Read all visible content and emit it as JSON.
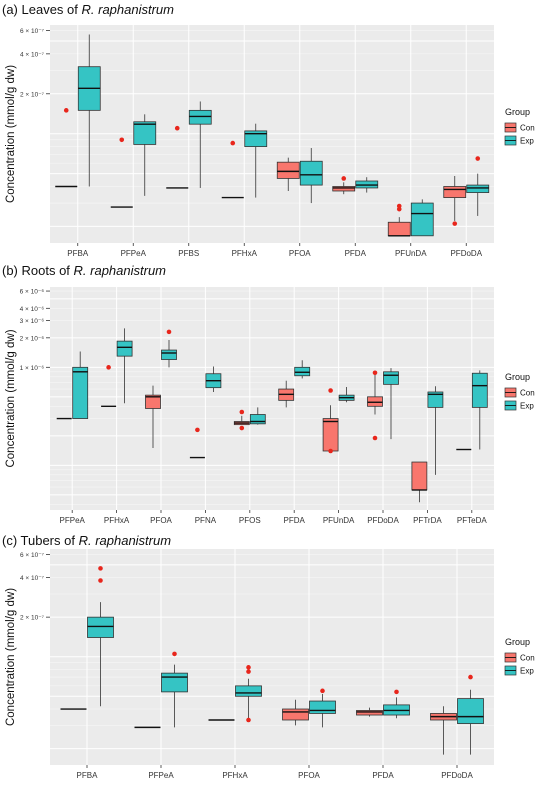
{
  "figure": {
    "ylabel": "Concentration (mmol/g dw)",
    "legend_title": "Group",
    "legend_labels": [
      "Con",
      "Exp"
    ],
    "colors": {
      "Con": "#F8766D",
      "Exp": "#35C4C4",
      "panel_bg": "#EBEBEB",
      "grid": "#FFFFFF",
      "outlier": "#E8261C"
    }
  },
  "chart_data": [
    {
      "type": "box",
      "title": "(a) Leaves of ",
      "title_species": "R. raphanistrum",
      "ylabel": "Concentration (mmol/g dw)",
      "y_ticks": [
        "6 × 10⁻⁷",
        "4 × 10⁻⁷",
        "2 × 10⁻⁷"
      ],
      "scale": "log",
      "categories": [
        "PFBA",
        "PFPeA",
        "PFBS",
        "PFHxA",
        "PFOA",
        "PFDA",
        "PFUnDA",
        "PFDoDA"
      ],
      "legend_position": "right",
      "series": [
        {
          "name": "Con",
          "boxes": [
            {
              "cat": 0,
              "min": 4e-08,
              "q1": 4e-08,
              "median": 4e-08,
              "q3": 4e-08,
              "max": 4e-08,
              "outliers": [
                1.5e-07
              ]
            },
            {
              "cat": 1,
              "min": 2.8e-08,
              "q1": 2.8e-08,
              "median": 2.8e-08,
              "q3": 2.8e-08,
              "max": 2.8e-08,
              "outliers": [
                9e-08
              ]
            },
            {
              "cat": 2,
              "min": 3.9e-08,
              "q1": 3.9e-08,
              "median": 3.9e-08,
              "q3": 3.9e-08,
              "max": 3.9e-08,
              "outliers": [
                1.1e-07
              ]
            },
            {
              "cat": 3,
              "min": 3.3e-08,
              "q1": 3.3e-08,
              "median": 3.3e-08,
              "q3": 3.3e-08,
              "max": 3.3e-08,
              "outliers": [
                8.5e-08
              ]
            },
            {
              "cat": 4,
              "min": 3.7e-08,
              "q1": 4.6e-08,
              "median": 5.2e-08,
              "q3": 6.1e-08,
              "max": 6.6e-08,
              "outliers": []
            },
            {
              "cat": 5,
              "min": 3.5e-08,
              "q1": 3.7e-08,
              "median": 3.9e-08,
              "q3": 4e-08,
              "max": 4.3e-08,
              "outliers": [
                4.6e-08
              ]
            },
            {
              "cat": 6,
              "min": 1.7e-08,
              "q1": 1.7e-08,
              "median": 1.7e-08,
              "q3": 2.15e-08,
              "max": 2.35e-08,
              "outliers": [
                2.7e-08,
                2.85e-08
              ]
            },
            {
              "cat": 7,
              "min": 2.2e-08,
              "q1": 3.3e-08,
              "median": 3.8e-08,
              "q3": 4e-08,
              "max": 4.8e-08,
              "outliers": [
                2.1e-08
              ]
            }
          ]
        },
        {
          "name": "Exp",
          "boxes": [
            {
              "cat": 0,
              "min": 4e-08,
              "q1": 1.5e-07,
              "median": 2.2e-07,
              "q3": 3.2e-07,
              "max": 5.6e-07,
              "outliers": []
            },
            {
              "cat": 1,
              "min": 3.4e-08,
              "q1": 8.3e-08,
              "median": 1.18e-07,
              "q3": 1.23e-07,
              "max": 1.4e-07,
              "outliers": []
            },
            {
              "cat": 2,
              "min": 3.9e-08,
              "q1": 1.18e-07,
              "median": 1.35e-07,
              "q3": 1.5e-07,
              "max": 1.75e-07,
              "outliers": []
            },
            {
              "cat": 3,
              "min": 3.3e-08,
              "q1": 8e-08,
              "median": 1e-07,
              "q3": 1.05e-07,
              "max": 1.19e-07,
              "outliers": []
            },
            {
              "cat": 4,
              "min": 3e-08,
              "q1": 4.1e-08,
              "median": 4.9e-08,
              "q3": 6.2e-08,
              "max": 7.8e-08,
              "outliers": []
            },
            {
              "cat": 5,
              "min": 3.6e-08,
              "q1": 3.9e-08,
              "median": 4.1e-08,
              "q3": 4.4e-08,
              "max": 4.7e-08,
              "outliers": []
            },
            {
              "cat": 6,
              "min": 1.7e-08,
              "q1": 1.7e-08,
              "median": 2.5e-08,
              "q3": 3e-08,
              "max": 3.2e-08,
              "outliers": []
            },
            {
              "cat": 7,
              "min": 2.4e-08,
              "q1": 3.6e-08,
              "median": 3.9e-08,
              "q3": 4.1e-08,
              "max": 5e-08,
              "outliers": [
                6.5e-08
              ]
            }
          ]
        }
      ]
    },
    {
      "type": "box",
      "title": "(b) Roots of ",
      "title_species": "R. raphanistrum",
      "ylabel": "Concentration (mmol/g dw)",
      "y_ticks": [
        "6 × 10⁻⁶",
        "4 × 10⁻⁶",
        "3 × 10⁻⁶",
        "2 × 10⁻⁶",
        "1 × 10⁻⁶"
      ],
      "scale": "log",
      "categories": [
        "PFPeA",
        "PFHxA",
        "PFOA",
        "PFNA",
        "PFOS",
        "PFDA",
        "PFUnDA",
        "PFDoDA",
        "PFTrDA",
        "PFTeDA"
      ],
      "legend_position": "right",
      "series": [
        {
          "name": "Con",
          "boxes": [
            {
              "cat": 0,
              "min": 3e-07,
              "q1": 3e-07,
              "median": 3e-07,
              "q3": 3e-07,
              "max": 3e-07,
              "outliers": []
            },
            {
              "cat": 1,
              "min": 4e-07,
              "q1": 4e-07,
              "median": 4e-07,
              "q3": 4e-07,
              "max": 4e-07,
              "outliers": [
                1e-06
              ]
            },
            {
              "cat": 2,
              "min": 1.5e-07,
              "q1": 3.8e-07,
              "median": 5e-07,
              "q3": 5.2e-07,
              "max": 6.5e-07,
              "outliers": []
            },
            {
              "cat": 3,
              "min": 1.2e-07,
              "q1": 1.2e-07,
              "median": 1.2e-07,
              "q3": 1.2e-07,
              "max": 1.2e-07,
              "outliers": [
                2.3e-07
              ]
            },
            {
              "cat": 4,
              "min": 2.6e-07,
              "q1": 2.6e-07,
              "median": 2.7e-07,
              "q3": 2.8e-07,
              "max": 3.2e-07,
              "outliers": [
                2.4e-07,
                3.5e-07
              ]
            },
            {
              "cat": 5,
              "min": 3.9e-07,
              "q1": 4.6e-07,
              "median": 5.3e-07,
              "q3": 6e-07,
              "max": 7.3e-07,
              "outliers": []
            },
            {
              "cat": 6,
              "min": 1.4e-07,
              "q1": 1.4e-07,
              "median": 2.8e-07,
              "q3": 3e-07,
              "max": 4.1e-07,
              "outliers": [
                1.4e-07,
                5.8e-07
              ]
            },
            {
              "cat": 7,
              "min": 3.3e-07,
              "q1": 4e-07,
              "median": 4.4e-07,
              "q3": 5e-07,
              "max": 8.5e-07,
              "outliers": [
                1.9e-07,
                8.8e-07
              ]
            },
            {
              "cat": 8,
              "min": 4.2e-08,
              "q1": 5.6e-08,
              "median": 5.6e-08,
              "q3": 1.08e-07,
              "max": 1.08e-07,
              "outliers": []
            },
            {
              "cat": 9,
              "min": 1.45e-07,
              "q1": 1.45e-07,
              "median": 1.45e-07,
              "q3": 1.45e-07,
              "max": 1.45e-07,
              "outliers": []
            }
          ]
        },
        {
          "name": "Exp",
          "boxes": [
            {
              "cat": 0,
              "min": 3e-07,
              "q1": 3e-07,
              "median": 9e-07,
              "q3": 1e-06,
              "max": 1.45e-06,
              "outliers": []
            },
            {
              "cat": 1,
              "min": 4.3e-07,
              "q1": 1.3e-06,
              "median": 1.6e-06,
              "q3": 1.85e-06,
              "max": 2.5e-06,
              "outliers": []
            },
            {
              "cat": 2,
              "min": 1e-06,
              "q1": 1.2e-06,
              "median": 1.4e-06,
              "q3": 1.5e-06,
              "max": 1.9e-06,
              "outliers": [
                2.3e-06
              ]
            },
            {
              "cat": 3,
              "min": 5.6e-07,
              "q1": 6.2e-07,
              "median": 7.3e-07,
              "q3": 8.6e-07,
              "max": 1.02e-06,
              "outliers": []
            },
            {
              "cat": 4,
              "min": 2.6e-07,
              "q1": 2.65e-07,
              "median": 2.8e-07,
              "q3": 3.3e-07,
              "max": 3.9e-07,
              "outliers": []
            },
            {
              "cat": 5,
              "min": 7.7e-07,
              "q1": 8.2e-07,
              "median": 8.9e-07,
              "q3": 1e-06,
              "max": 1.18e-06,
              "outliers": []
            },
            {
              "cat": 6,
              "min": 4.4e-07,
              "q1": 4.6e-07,
              "median": 4.9e-07,
              "q3": 5.2e-07,
              "max": 6.3e-07,
              "outliers": []
            },
            {
              "cat": 7,
              "min": 1.85e-07,
              "q1": 6.7e-07,
              "median": 8.3e-07,
              "q3": 9e-07,
              "max": 9.8e-07,
              "outliers": []
            },
            {
              "cat": 8,
              "min": 8e-08,
              "q1": 3.9e-07,
              "median": 5.3e-07,
              "q3": 5.6e-07,
              "max": 6.4e-07,
              "outliers": []
            },
            {
              "cat": 9,
              "min": 1.45e-07,
              "q1": 3.9e-07,
              "median": 6.5e-07,
              "q3": 8.7e-07,
              "max": 9.3e-07,
              "outliers": []
            }
          ]
        }
      ]
    },
    {
      "type": "box",
      "title": "(c) Tubers of ",
      "title_species": "R. raphanistrum",
      "ylabel": "Concentration (mmol/g dw)",
      "y_ticks": [
        "6 × 10⁻⁷",
        "4 × 10⁻⁷",
        "2 × 10⁻⁷"
      ],
      "scale": "log",
      "categories": [
        "PFBA",
        "PFPeA",
        "PFHxA",
        "PFOA",
        "PFDA",
        "PFDoDA"
      ],
      "legend_position": "right",
      "series": [
        {
          "name": "Con",
          "boxes": [
            {
              "cat": 0,
              "min": 4e-08,
              "q1": 4e-08,
              "median": 4e-08,
              "q3": 4e-08,
              "max": 4e-08,
              "outliers": []
            },
            {
              "cat": 1,
              "min": 2.9e-08,
              "q1": 2.9e-08,
              "median": 2.9e-08,
              "q3": 2.9e-08,
              "max": 2.9e-08,
              "outliers": []
            },
            {
              "cat": 2,
              "min": 3.3e-08,
              "q1": 3.3e-08,
              "median": 3.3e-08,
              "q3": 3.3e-08,
              "max": 3.3e-08,
              "outliers": []
            },
            {
              "cat": 3,
              "min": 3e-08,
              "q1": 3.3e-08,
              "median": 3.8e-08,
              "q3": 4e-08,
              "max": 4.7e-08,
              "outliers": []
            },
            {
              "cat": 4,
              "min": 3.5e-08,
              "q1": 3.6e-08,
              "median": 3.8e-08,
              "q3": 3.9e-08,
              "max": 4.1e-08,
              "outliers": []
            },
            {
              "cat": 5,
              "min": 1.8e-08,
              "q1": 3.3e-08,
              "median": 3.5e-08,
              "q3": 3.7e-08,
              "max": 4.2e-08,
              "outliers": []
            }
          ]
        },
        {
          "name": "Exp",
          "boxes": [
            {
              "cat": 0,
              "min": 4.2e-08,
              "q1": 1.4e-07,
              "median": 1.7e-07,
              "q3": 2e-07,
              "max": 2.6e-07,
              "outliers": [
                3.8e-07,
                4.7e-07
              ]
            },
            {
              "cat": 1,
              "min": 2.9e-08,
              "q1": 5.4e-08,
              "median": 7e-08,
              "q3": 7.5e-08,
              "max": 8.7e-08,
              "outliers": [
                1.05e-07
              ]
            },
            {
              "cat": 2,
              "min": 3.3e-08,
              "q1": 5e-08,
              "median": 5.3e-08,
              "q3": 6e-08,
              "max": 6.8e-08,
              "outliers": [
                3.3e-08,
                7.7e-08,
                8.3e-08
              ]
            },
            {
              "cat": 3,
              "min": 2.9e-08,
              "q1": 3.7e-08,
              "median": 3.9e-08,
              "q3": 4.6e-08,
              "max": 5.2e-08,
              "outliers": [
                5.5e-08
              ]
            },
            {
              "cat": 4,
              "min": 3.4e-08,
              "q1": 3.6e-08,
              "median": 3.9e-08,
              "q3": 4.3e-08,
              "max": 4.9e-08,
              "outliers": [
                5.4e-08
              ]
            },
            {
              "cat": 5,
              "min": 1.8e-08,
              "q1": 3.1e-08,
              "median": 3.5e-08,
              "q3": 4.8e-08,
              "max": 5.6e-08,
              "outliers": [
                7e-08
              ]
            }
          ]
        }
      ]
    }
  ]
}
